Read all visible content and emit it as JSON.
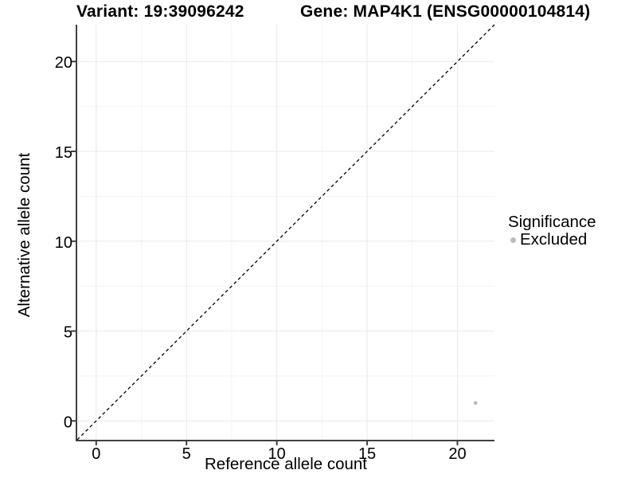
{
  "chart_data": {
    "type": "scatter",
    "title_left": "Variant: 19:39096242",
    "title_right": "Gene: MAP4K1 (ENSG00000104814)",
    "xlabel": "Reference allele count",
    "ylabel": "Alternative allele count",
    "xlim": [
      -1.05,
      22.05
    ],
    "ylim": [
      -1.05,
      22.05
    ],
    "x_ticks": [
      0,
      5,
      10,
      15,
      20
    ],
    "y_ticks": [
      0,
      5,
      10,
      15,
      20
    ],
    "x_minor_ticks": [
      2.5,
      7.5,
      12.5,
      17.5
    ],
    "y_minor_ticks": [
      2.5,
      7.5,
      12.5,
      17.5
    ],
    "grid": "major+minor",
    "reference_line": {
      "slope": 1,
      "intercept": 0,
      "style": "dashed",
      "color": "#000000"
    },
    "series": [
      {
        "name": "Excluded",
        "color": "#bbbbbb",
        "point_radius": 2.4,
        "points": [
          {
            "x": 21,
            "y": 1
          }
        ]
      }
    ],
    "legend": {
      "title": "Significance",
      "position": "right",
      "entries": [
        {
          "label": "Excluded",
          "color": "#bbbbbb"
        }
      ]
    }
  },
  "colors": {
    "background": "#ffffff",
    "axis_line": "#404040",
    "grid_major": "#e9e9e9",
    "grid_minor": "#f4f4f4",
    "text": "#000000"
  }
}
